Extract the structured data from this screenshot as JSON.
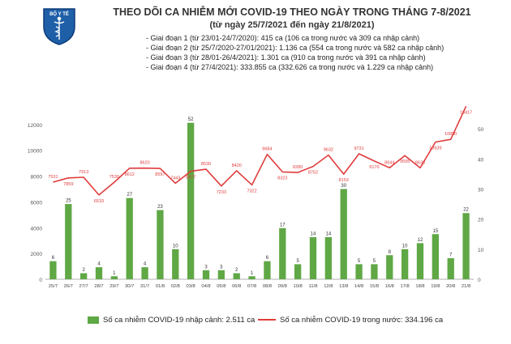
{
  "header": {
    "title": "THEO DÕI CA NHIỄM MỚI COVID-19 THEO NGÀY TRONG THÁNG 7-8/2021",
    "subtitle": "(từ ngày 25/7/2021 đến ngày 21/8/2021)",
    "phases": [
      "- Giai đoạn 1 (từ 23/01-24/7/2020): 415 ca (106 ca trong nước và 309 ca nhập cảnh)",
      "- Giai đoạn 2 (từ 25/7/2020-27/01/2021): 1.136 ca (554 ca trong nước và 582 ca nhập cảnh)",
      "- Giai đoạn 3 (từ 28/01-26/4/2021): 1.301 ca (910 ca trong nước và 391 ca nhập cảnh)",
      "- Giai đoạn 4 (từ 27/4/2021): 333.855 ca (332.626 ca trong nước và 1.229 ca nhập cảnh)"
    ],
    "logo_text": "BỘ Y TẾ",
    "logo_icon": "caduceus-icon"
  },
  "colors": {
    "bar": "#5fa845",
    "line": "#e03c3c",
    "axis": "#999999"
  },
  "chart_data": {
    "type": "bar+line",
    "categories": [
      "25/7",
      "26/7",
      "27/7",
      "28/7",
      "29/7",
      "30/7",
      "31/7",
      "01/8",
      "02/8",
      "03/8",
      "04/8",
      "05/8",
      "06/8",
      "07/8",
      "08/8",
      "09/8",
      "10/8",
      "11/8",
      "12/8",
      "13/8",
      "14/8",
      "15/8",
      "16/8",
      "17/8",
      "18/8",
      "19/8",
      "20/8",
      "21/8"
    ],
    "y_left": {
      "ticks": [
        0,
        2000,
        4000,
        6000,
        8000,
        10000,
        12000
      ],
      "tick_labels": [
        "0",
        "2000",
        "4000",
        "6000",
        "8000",
        "10000",
        "12000"
      ],
      "ylim": [
        0,
        14000
      ]
    },
    "y_right": {
      "ticks": [
        0,
        10,
        20,
        30,
        40,
        50
      ],
      "tick_labels": [
        "0",
        "10",
        "20",
        "30",
        "40",
        "50"
      ],
      "ylim": [
        0,
        60
      ]
    },
    "series": [
      {
        "name": "Số ca nhiễm COVID-19 nhập cảnh: 2.511 ca",
        "kind": "bar",
        "axis": "right",
        "values": [
          6,
          25,
          2,
          4,
          1,
          27,
          4,
          23,
          10,
          52,
          3,
          3,
          2,
          1,
          6,
          17,
          5,
          14,
          14,
          30,
          5,
          5,
          8,
          10,
          12,
          15,
          7,
          22
        ],
        "labels": [
          "6",
          "25",
          "2",
          "4",
          "1",
          "27",
          "4",
          "23",
          "10",
          "52",
          "3",
          "3",
          "2",
          "1",
          "6",
          "17",
          "5",
          "14",
          "14",
          "30",
          "5",
          "5",
          "8",
          "10",
          "12",
          "15",
          "7",
          "22"
        ]
      },
      {
        "name": "Số ca nhiễm COVID-19 trong nước: 334.196 ca",
        "kind": "line",
        "axis": "left",
        "values": [
          7531,
          7859,
          7913,
          6533,
          7530,
          8612,
          8620,
          8597,
          7443,
          8377,
          8530,
          7233,
          8420,
          7322,
          9684,
          8323,
          8280,
          8752,
          9632,
          8153,
          9731,
          9170,
          8644,
          9595,
          8638,
          10639,
          10850,
          13417
        ],
        "labels": [
          "7531",
          "7859",
          "7913",
          "6533",
          "7530",
          "8612",
          "8620",
          "8597",
          "7443",
          "8377",
          "8530",
          "7233",
          "8420",
          "7322",
          "9684",
          "8323",
          "8280",
          "8752",
          "9632",
          "8153",
          "9731",
          "9170",
          "8644",
          "9595",
          "8638",
          "10639",
          "10850",
          "13417"
        ]
      }
    ],
    "legend_position": "bottom"
  }
}
